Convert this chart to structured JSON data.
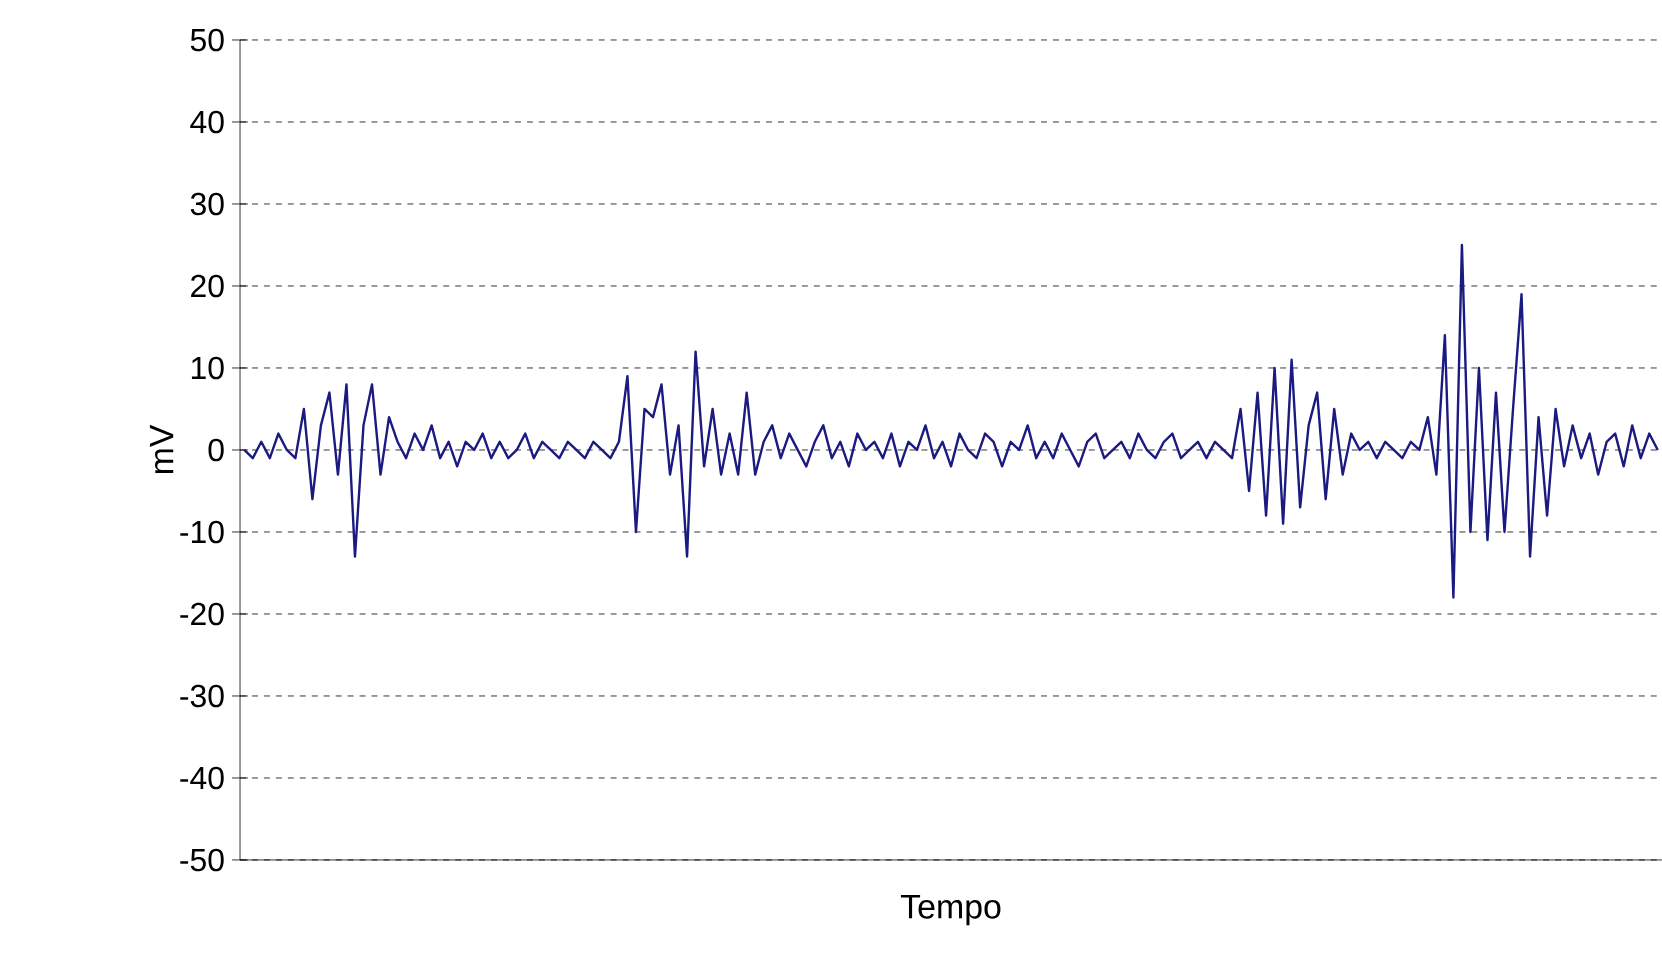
{
  "chart_data": {
    "type": "line",
    "xlabel": "Tempo",
    "ylabel": "mV",
    "categories": [
      null,
      null,
      null,
      null,
      null,
      null,
      null,
      null,
      null,
      null,
      null,
      null,
      null,
      null,
      null,
      null,
      null,
      null,
      null,
      null,
      null,
      null,
      null,
      null,
      null,
      null,
      null,
      null,
      null,
      null,
      null,
      null,
      null,
      null,
      null,
      null,
      null,
      null,
      null,
      null,
      null,
      null,
      null,
      null,
      null,
      null,
      null,
      null,
      null,
      null,
      null,
      null,
      null,
      null,
      null,
      null,
      null,
      null,
      null,
      null,
      null,
      null,
      null,
      null,
      null,
      null,
      null,
      null,
      null,
      null,
      null,
      null,
      null,
      null,
      null,
      null,
      null,
      null,
      null,
      null,
      null,
      null,
      null,
      null,
      null,
      null,
      null,
      null,
      null,
      null,
      null,
      null,
      null,
      null,
      null,
      null,
      null,
      null,
      null,
      null,
      null,
      null,
      null,
      null,
      null,
      null,
      null,
      null,
      null,
      null,
      null,
      null,
      null,
      null,
      null,
      null,
      null,
      null,
      null,
      null,
      null,
      null,
      null,
      null,
      null,
      null,
      null,
      null,
      null,
      null,
      null,
      null,
      null,
      null,
      null,
      null,
      null,
      null,
      null,
      null,
      null,
      null,
      null,
      null,
      null,
      null,
      null,
      null,
      null,
      null,
      null,
      null,
      null,
      null,
      null,
      null,
      null,
      null,
      null,
      null,
      null,
      null,
      null,
      null,
      null,
      null,
      null
    ],
    "values": [
      0,
      -1,
      1,
      -1,
      2,
      0,
      -1,
      5,
      -6,
      3,
      7,
      -3,
      8,
      -13,
      3,
      8,
      -3,
      4,
      1,
      -1,
      2,
      0,
      3,
      -1,
      1,
      -2,
      1,
      0,
      2,
      -1,
      1,
      -1,
      0,
      2,
      -1,
      1,
      0,
      -1,
      1,
      0,
      -1,
      1,
      0,
      -1,
      1,
      9,
      -10,
      5,
      4,
      8,
      -3,
      3,
      -13,
      12,
      -2,
      5,
      -3,
      2,
      -3,
      7,
      -3,
      1,
      3,
      -1,
      2,
      0,
      -2,
      1,
      3,
      -1,
      1,
      -2,
      2,
      0,
      1,
      -1,
      2,
      -2,
      1,
      0,
      3,
      -1,
      1,
      -2,
      2,
      0,
      -1,
      2,
      1,
      -2,
      1,
      0,
      3,
      -1,
      1,
      -1,
      2,
      0,
      -2,
      1,
      2,
      -1,
      0,
      1,
      -1,
      2,
      0,
      -1,
      1,
      2,
      -1,
      0,
      1,
      -1,
      1,
      0,
      -1,
      5,
      -5,
      7,
      -8,
      10,
      -9,
      11,
      -7,
      3,
      7,
      -6,
      5,
      -3,
      2,
      0,
      1,
      -1,
      1,
      0,
      -1,
      1,
      0,
      4,
      -3,
      14,
      -18,
      25,
      -10,
      10,
      -11,
      7,
      -10,
      5,
      19,
      -13,
      4,
      -8,
      5,
      -2,
      3,
      -1,
      2,
      -3,
      1,
      2,
      -2,
      3,
      -1,
      2,
      0
    ],
    "color": "#1a1a80",
    "ylim": [
      -50,
      50
    ],
    "yticks": [
      -50,
      -40,
      -30,
      -20,
      -10,
      0,
      10,
      20,
      30,
      40,
      50
    ],
    "grid": "y"
  }
}
